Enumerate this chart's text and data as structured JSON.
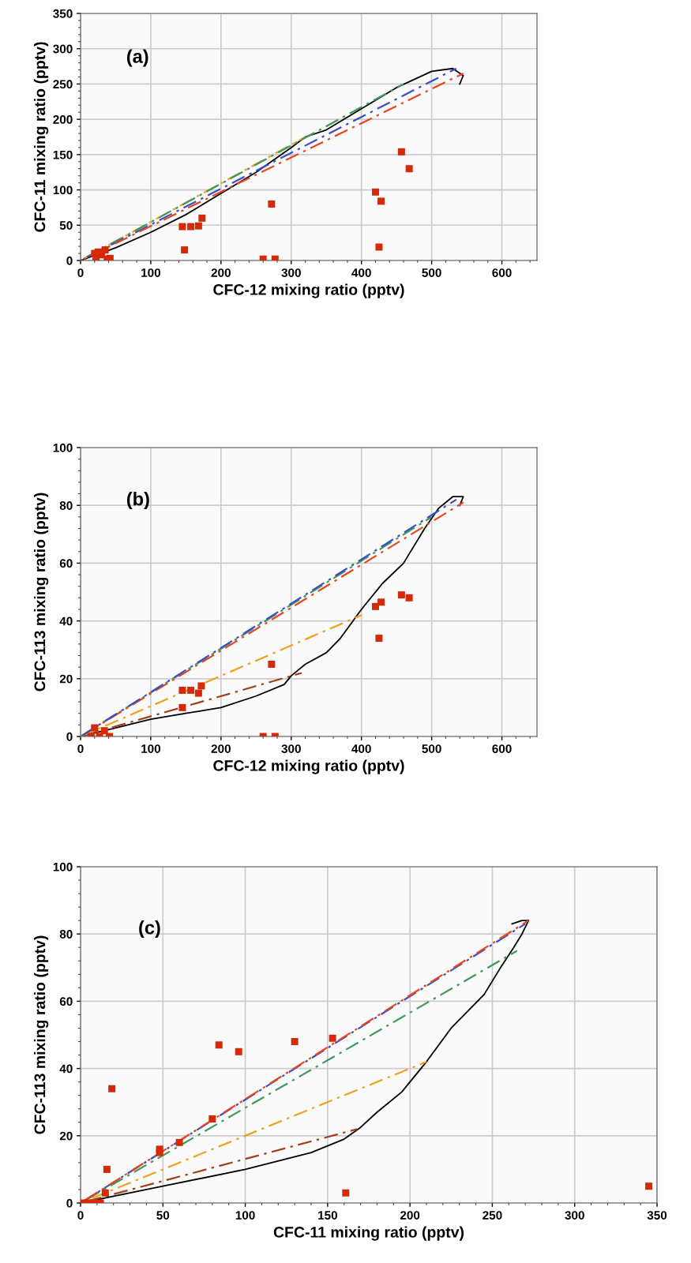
{
  "chart_data": [
    {
      "type": "line",
      "xlabel": "CFC-12 mixing ratio (pptv)",
      "ylabel": "CFC-11 mixing ratio (pptv)",
      "annotations": [
        "(a)"
      ],
      "xlim": [
        0,
        650
      ],
      "ylim": [
        0,
        350
      ],
      "xticks": [
        0,
        100,
        200,
        300,
        400,
        500,
        600
      ],
      "yticks": [
        0,
        50,
        100,
        150,
        200,
        250,
        300,
        350
      ],
      "grid": true,
      "series": [
        {
          "type": "line",
          "color": "#000000",
          "line_style": "solid",
          "x": [
            0,
            50,
            100,
            150,
            200,
            250,
            300,
            320,
            350,
            400,
            450,
            500,
            530,
            545,
            540
          ],
          "values": [
            0,
            18,
            40,
            65,
            95,
            125,
            160,
            175,
            185,
            215,
            245,
            268,
            272,
            262,
            250
          ]
        },
        {
          "type": "line",
          "color": "#f0a020",
          "line_style": "dashed",
          "x": [
            0,
            320
          ],
          "values": [
            0,
            175
          ]
        },
        {
          "type": "line",
          "color": "#3c9a5a",
          "line_style": "dashed",
          "x": [
            0,
            460
          ],
          "values": [
            0,
            250
          ]
        },
        {
          "type": "line",
          "color": "#3b4fc4",
          "line_style": "dashed",
          "x": [
            0,
            535
          ],
          "values": [
            0,
            272
          ]
        },
        {
          "type": "line",
          "color": "#e8461e",
          "line_style": "dashed",
          "x": [
            0,
            545
          ],
          "values": [
            0,
            265
          ]
        },
        {
          "type": "scatter",
          "color": "#d42a0a",
          "marker": "square",
          "x": [
            20,
            22,
            25,
            30,
            35,
            38,
            42,
            145,
            148,
            157,
            168,
            173,
            260,
            272,
            277,
            420,
            425,
            428,
            457,
            468
          ],
          "values": [
            10,
            5,
            12,
            8,
            15,
            2,
            3,
            48,
            15,
            48,
            49,
            60,
            2,
            80,
            2,
            97,
            19,
            84,
            154,
            130
          ]
        }
      ]
    },
    {
      "type": "line",
      "xlabel": "CFC-12 mixing ratio (pptv)",
      "ylabel": "CFC-113 mixing ratio (pptv)",
      "annotations": [
        "(b)"
      ],
      "xlim": [
        0,
        650
      ],
      "ylim": [
        0,
        100
      ],
      "xticks": [
        0,
        100,
        200,
        300,
        400,
        500,
        600
      ],
      "yticks": [
        0,
        20,
        40,
        60,
        80,
        100
      ],
      "grid": true,
      "series": [
        {
          "type": "line",
          "color": "#000000",
          "line_style": "solid",
          "x": [
            0,
            50,
            100,
            150,
            200,
            250,
            290,
            300,
            320,
            350,
            370,
            400,
            430,
            460,
            490,
            510,
            530,
            545,
            540
          ],
          "values": [
            0,
            3,
            6,
            8,
            10,
            14,
            18,
            21,
            25,
            29,
            34,
            44,
            53,
            60,
            72,
            79,
            83,
            83,
            80
          ]
        },
        {
          "type": "line",
          "color": "#a0401a",
          "line_style": "dashed",
          "x": [
            0,
            315
          ],
          "values": [
            0,
            22
          ]
        },
        {
          "type": "line",
          "color": "#f0a020",
          "line_style": "dashed",
          "x": [
            0,
            400
          ],
          "values": [
            0,
            42
          ]
        },
        {
          "type": "line",
          "color": "#3c9a5a",
          "line_style": "dashed",
          "x": [
            0,
            500
          ],
          "values": [
            0,
            76
          ]
        },
        {
          "type": "line",
          "color": "#e8461e",
          "line_style": "dashed",
          "x": [
            0,
            545
          ],
          "values": [
            0,
            81
          ]
        },
        {
          "type": "line",
          "color": "#3b4fc4",
          "line_style": "dashed",
          "x": [
            0,
            535
          ],
          "values": [
            0,
            82
          ]
        },
        {
          "type": "scatter",
          "color": "#d42a0a",
          "marker": "square",
          "x": [
            20,
            15,
            27,
            34,
            41,
            145,
            145,
            157,
            168,
            172,
            260,
            272,
            277,
            420,
            425,
            428,
            457,
            468
          ],
          "values": [
            3,
            0,
            0,
            2,
            0,
            16,
            10,
            16,
            15,
            17.5,
            0,
            25,
            0,
            45,
            34,
            46.5,
            49,
            48
          ]
        }
      ]
    },
    {
      "type": "line",
      "xlabel": "CFC-11 mixing ratio (pptv)",
      "ylabel": "CFC-113 mixing ratio (pptv)",
      "annotations": [
        "(c)"
      ],
      "xlim": [
        0,
        350
      ],
      "ylim": [
        0,
        100
      ],
      "xticks": [
        0,
        50,
        100,
        150,
        200,
        250,
        300,
        350
      ],
      "yticks": [
        0,
        20,
        40,
        60,
        80,
        100
      ],
      "grid": true,
      "series": [
        {
          "type": "line",
          "color": "#000000",
          "line_style": "solid",
          "x": [
            0,
            50,
            100,
            140,
            150,
            160,
            170,
            180,
            195,
            210,
            225,
            245,
            255,
            263,
            268,
            272,
            268,
            262
          ],
          "values": [
            0,
            5,
            10,
            15,
            17,
            19,
            22.5,
            27,
            33,
            42,
            52,
            62,
            70,
            76,
            80,
            84,
            84,
            83
          ]
        },
        {
          "type": "line",
          "color": "#a0401a",
          "line_style": "dashed",
          "x": [
            0,
            168
          ],
          "values": [
            0,
            22
          ]
        },
        {
          "type": "line",
          "color": "#f0a020",
          "line_style": "dashed",
          "x": [
            0,
            210
          ],
          "values": [
            0,
            42
          ]
        },
        {
          "type": "line",
          "color": "#3c9a5a",
          "line_style": "dashed",
          "x": [
            0,
            265
          ],
          "values": [
            0,
            75
          ]
        },
        {
          "type": "line",
          "color": "#3b4fc4",
          "line_style": "dashed",
          "x": [
            0,
            270
          ],
          "values": [
            0,
            83
          ]
        },
        {
          "type": "line",
          "color": "#e8461e",
          "line_style": "dashed",
          "x": [
            0,
            272
          ],
          "values": [
            0,
            84
          ]
        },
        {
          "type": "scatter",
          "color": "#d42a0a",
          "marker": "square",
          "x": [
            0,
            4,
            8,
            12,
            15,
            16,
            19,
            48,
            48,
            60,
            80,
            84,
            96,
            130,
            153,
            161,
            345
          ],
          "values": [
            0,
            0,
            0,
            0,
            3,
            10,
            34,
            16,
            15,
            18,
            25,
            47,
            45,
            48,
            49,
            3,
            5
          ]
        }
      ]
    }
  ]
}
